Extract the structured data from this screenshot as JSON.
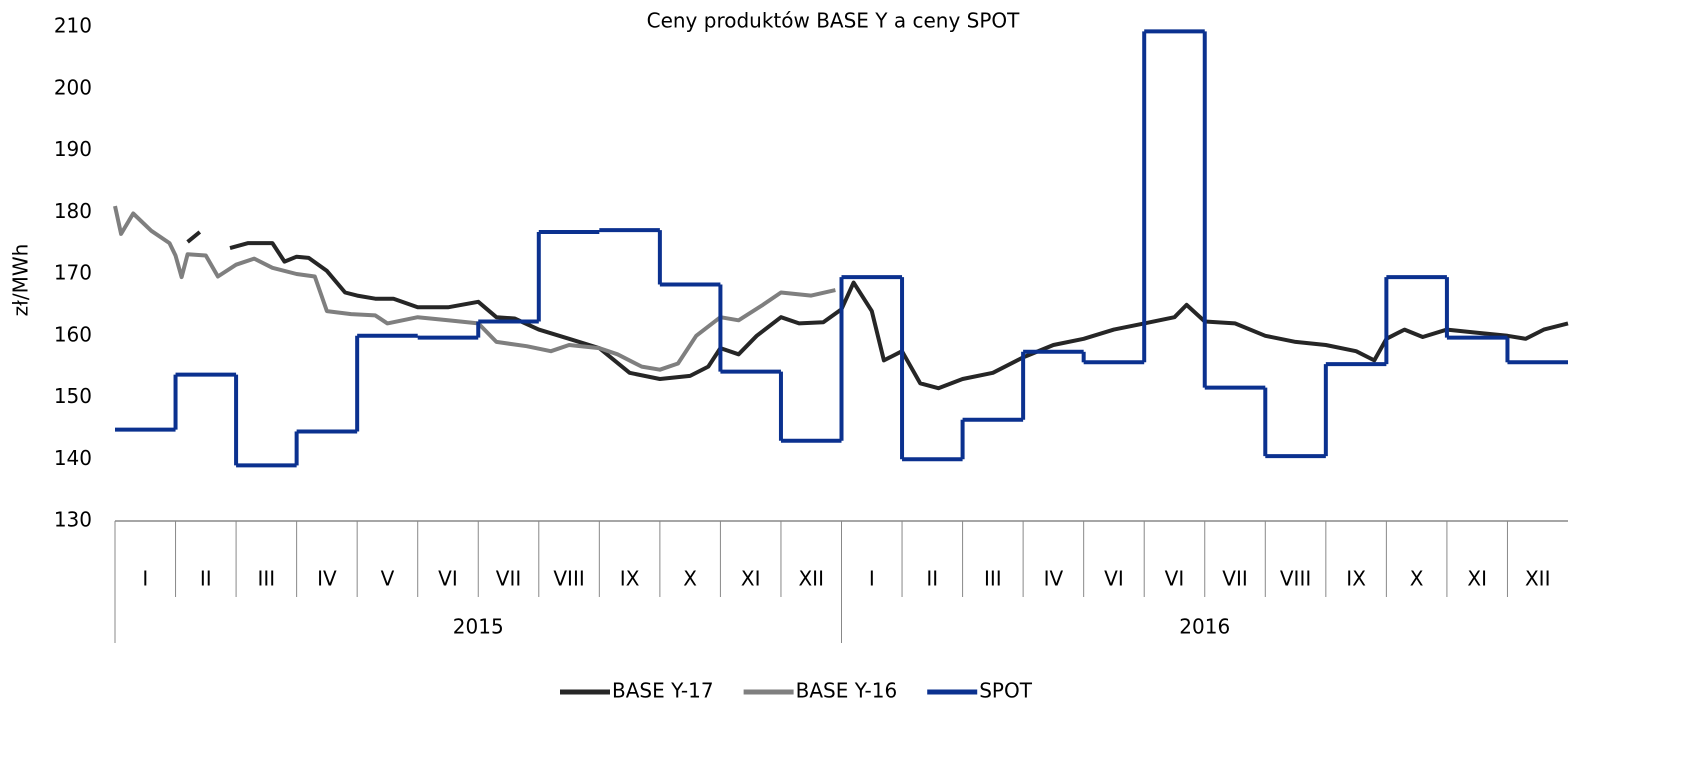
{
  "chart_data": {
    "type": "line",
    "title": "Ceny produktów BASE Y a ceny SPOT",
    "y_label": "zł/MWh",
    "categories": [
      "I",
      "II",
      "III",
      "IV",
      "V",
      "VI",
      "VII",
      "VIII",
      "IX",
      "X",
      "XI",
      "XII",
      "I",
      "II",
      "III",
      "IV",
      "VI",
      "VI",
      "VII",
      "VIII",
      "IX",
      "X",
      "XI",
      "XII"
    ],
    "years": [
      "2015",
      "2016"
    ],
    "xlim": [
      0,
      24
    ],
    "ylim": [
      130,
      210
    ],
    "yticks": [
      130,
      140,
      150,
      160,
      170,
      180,
      190,
      200,
      210
    ],
    "series": [
      {
        "name": "BASE Y-17",
        "color": "#262626",
        "x": [
          1.2,
          1.4,
          1.6,
          1.9,
          2.2,
          2.6,
          2.8,
          3.0,
          3.2,
          3.5,
          3.8,
          4.0,
          4.3,
          4.6,
          5.0,
          5.5,
          6.0,
          6.3,
          6.6,
          7.0,
          7.5,
          8.0,
          8.5,
          9.0,
          9.5,
          9.8,
          10.0,
          10.3,
          10.6,
          11.0,
          11.3,
          11.7,
          12.0,
          12.2,
          12.5,
          12.7,
          13.0,
          13.3,
          13.6,
          14.0,
          14.5,
          15.0,
          15.5,
          16.0,
          16.5,
          17.0,
          17.5,
          17.7,
          18.0,
          18.5,
          19.0,
          19.5,
          20.0,
          20.5,
          20.8,
          21.0,
          21.3,
          21.6,
          22.0,
          22.5,
          23.0,
          23.3,
          23.6,
          24.0
        ],
        "values": [
          175.2,
          176.8,
          null,
          174.2,
          175,
          175,
          172,
          172.8,
          172.6,
          170.5,
          167,
          166.5,
          166,
          166,
          164.6,
          164.6,
          165.5,
          163,
          162.8,
          161,
          159.5,
          158,
          154,
          153,
          153.5,
          155,
          158,
          157,
          160,
          163,
          162,
          162.2,
          164.3,
          168.6,
          164,
          156,
          157.5,
          152.3,
          151.5,
          153,
          154,
          156.5,
          158.5,
          159.5,
          161,
          162,
          163,
          165,
          162.3,
          162,
          160,
          159,
          158.5,
          157.5,
          156,
          159.5,
          161,
          159.8,
          161,
          160.5,
          160,
          159.5,
          161,
          162
        ]
      },
      {
        "name": "BASE Y-16",
        "color": "#7f7f7f",
        "x": [
          0,
          0.1,
          0.3,
          0.6,
          0.9,
          1.0,
          1.1,
          1.2,
          1.5,
          1.7,
          2.0,
          2.3,
          2.6,
          3.0,
          3.3,
          3.5,
          3.9,
          4.3,
          4.5,
          5.0,
          5.5,
          6.0,
          6.3,
          6.8,
          7.2,
          7.5,
          8.0,
          8.3,
          8.7,
          9.0,
          9.3,
          9.6,
          10.0,
          10.3,
          10.7,
          11.0,
          11.5,
          11.9
        ],
        "values": [
          181,
          176.5,
          179.8,
          177,
          175,
          173,
          169.5,
          173.2,
          173,
          169.6,
          171.5,
          172.5,
          171,
          170,
          169.6,
          164,
          163.5,
          163.3,
          162,
          163,
          162.5,
          162,
          159,
          158.3,
          157.5,
          158.5,
          158,
          157,
          155,
          154.5,
          155.5,
          160,
          163,
          162.5,
          165,
          167,
          166.5,
          167.4
        ]
      },
      {
        "name": "SPOT",
        "color": "#0b318f",
        "step": true,
        "values": [
          144.8,
          153.7,
          139.0,
          144.5,
          160.0,
          159.7,
          162.3,
          176.8,
          177.1,
          168.3,
          154.2,
          143.0,
          169.5,
          140.0,
          146.4,
          157.4,
          155.7,
          209.3,
          151.6,
          140.5,
          155.4,
          169.5,
          159.7,
          155.7
        ]
      }
    ]
  }
}
